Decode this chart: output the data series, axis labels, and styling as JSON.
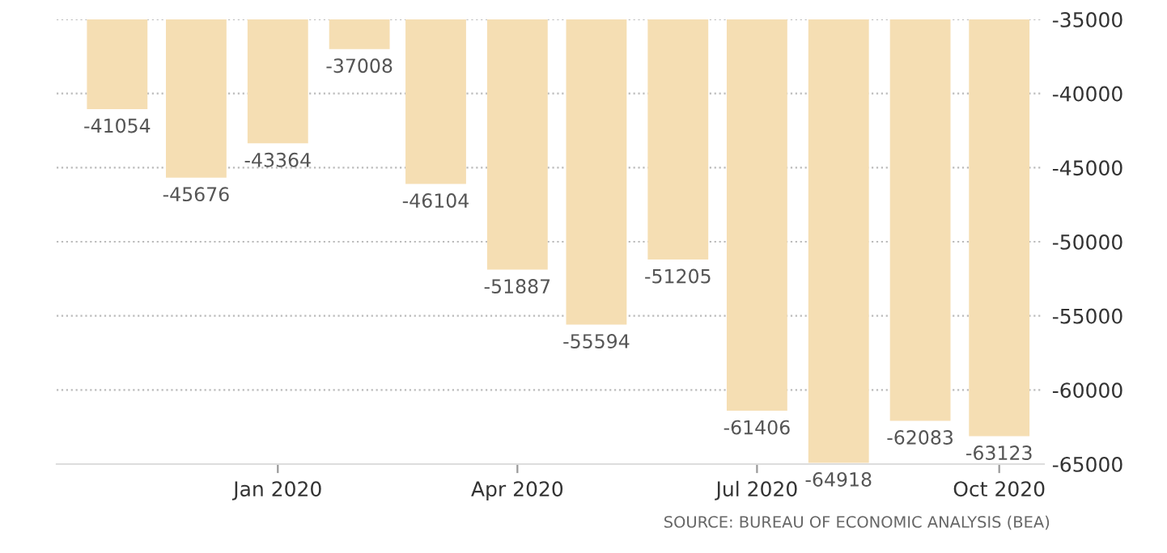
{
  "chart_data": {
    "type": "bar",
    "x": [
      "2019-11",
      "2019-12",
      "2020-01",
      "2020-02",
      "2020-03",
      "2020-04",
      "2020-05",
      "2020-06",
      "2020-07",
      "2020-08",
      "2020-09",
      "2020-10"
    ],
    "values": [
      -41054,
      -45676,
      -43364,
      -37008,
      -46104,
      -51887,
      -55594,
      -51205,
      -61406,
      -64918,
      -62083,
      -63123
    ],
    "color": "#f5deb3",
    "data_labels": true,
    "xlim": [
      "2019-10-09",
      "2020-10-18"
    ],
    "xticks": [
      {
        "value": "2020-01",
        "label": "Jan 2020"
      },
      {
        "value": "2020-04",
        "label": "Apr 2020"
      },
      {
        "value": "2020-07",
        "label": "Jul 2020"
      },
      {
        "value": "2020-10",
        "label": "Oct 2020"
      }
    ],
    "ylim": [
      -65000,
      -35000
    ],
    "yticks": [
      -65000,
      -60000,
      -55000,
      -50000,
      -45000,
      -40000,
      -35000
    ],
    "grid": "y",
    "annotations": [
      "SOURCE: BUREAU OF ECONOMIC ANALYSIS (BEA)"
    ]
  }
}
